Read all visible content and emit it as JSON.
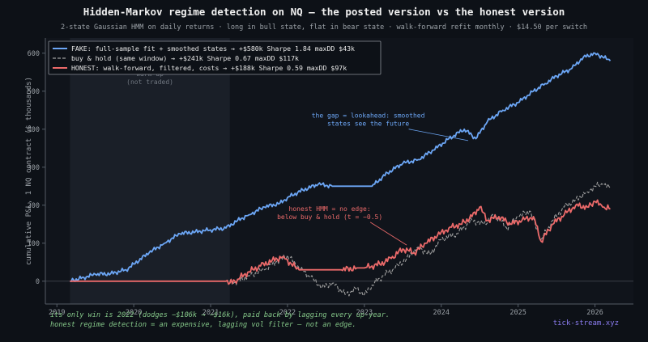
{
  "chart_data": {
    "type": "line",
    "title": "Hidden-Markov regime detection on NQ — the posted version vs the honest version",
    "subtitle": "2-state Gaussian HMM on daily returns · long in bull state, flat in bear state · walk-forward refit monthly · $14.50 per switch",
    "ylabel": "cumulative P&L, 1 NQ contract  ($ thousands)",
    "xlabel": "",
    "xlim": [
      2018.85,
      2026.5
    ],
    "ylim": [
      -60,
      640
    ],
    "x_ticks": [
      2019,
      2020,
      2021,
      2022,
      2023,
      2024,
      2025,
      2026
    ],
    "y_ticks": [
      0,
      100,
      200,
      300,
      400,
      500,
      600
    ],
    "grid": false,
    "legend_position": "top-left",
    "warmup": {
      "x_range": [
        2019.17,
        2021.25
      ],
      "label_line1": "warm-up",
      "label_line2": "(not traded)"
    },
    "series": [
      {
        "name": "FAKE: full-sample fit + smoothed states  →  +$580k    Sharpe 1.84    maxDD $43k",
        "color": "#6ca6f5",
        "style": "solid",
        "x": [
          2019.17,
          2019.35,
          2019.5,
          2019.7,
          2019.9,
          2020.0,
          2020.2,
          2020.4,
          2020.6,
          2020.8,
          2021.0,
          2021.2,
          2021.35,
          2021.5,
          2021.7,
          2021.9,
          2022.0,
          2022.2,
          2022.4,
          2022.6,
          2022.8,
          2022.9,
          2023.0,
          2023.1,
          2023.3,
          2023.5,
          2023.7,
          2023.9,
          2024.1,
          2024.3,
          2024.45,
          2024.6,
          2024.8,
          2025.0,
          2025.2,
          2025.35,
          2025.5,
          2025.7,
          2025.85,
          2026.0,
          2026.1,
          2026.2
        ],
        "values": [
          0,
          10,
          18,
          20,
          30,
          45,
          75,
          100,
          125,
          130,
          135,
          140,
          160,
          175,
          195,
          205,
          220,
          240,
          255,
          250,
          250,
          250,
          250,
          250,
          285,
          310,
          320,
          345,
          375,
          400,
          375,
          420,
          450,
          470,
          500,
          520,
          540,
          560,
          590,
          600,
          590,
          580
        ]
      },
      {
        "name": "buy & hold (same window)                  →  +$241k    Sharpe 0.67    maxDD $117k",
        "color": "#a0a0a0",
        "style": "dashed",
        "x": [
          2021.25,
          2021.3,
          2021.5,
          2021.7,
          2021.85,
          2022.0,
          2022.15,
          2022.3,
          2022.45,
          2022.6,
          2022.75,
          2022.9,
          2023.0,
          2023.1,
          2023.25,
          2023.4,
          2023.55,
          2023.7,
          2023.85,
          2024.0,
          2024.2,
          2024.4,
          2024.55,
          2024.7,
          2024.85,
          2025.0,
          2025.15,
          2025.3,
          2025.45,
          2025.6,
          2025.75,
          2025.9,
          2026.0,
          2026.1,
          2026.2
        ],
        "values": [
          0,
          -5,
          15,
          30,
          50,
          68,
          35,
          10,
          -15,
          -5,
          -35,
          -20,
          -35,
          -10,
          15,
          35,
          60,
          90,
          70,
          110,
          125,
          160,
          150,
          175,
          140,
          170,
          185,
          110,
          160,
          195,
          215,
          235,
          250,
          255,
          245
        ]
      },
      {
        "name": "HONEST: walk-forward, filtered, costs  →  +$188k    Sharpe 0.59    maxDD $97k",
        "color": "#ec6a6a",
        "style": "solid",
        "x": [
          2019.17,
          2021.2,
          2021.25,
          2021.35,
          2021.5,
          2021.65,
          2021.8,
          2021.95,
          2022.05,
          2022.15,
          2022.3,
          2022.5,
          2022.7,
          2022.9,
          2023.0,
          2023.1,
          2023.2,
          2023.35,
          2023.5,
          2023.65,
          2023.8,
          2023.95,
          2024.1,
          2024.25,
          2024.4,
          2024.5,
          2024.6,
          2024.75,
          2024.9,
          2025.05,
          2025.2,
          2025.3,
          2025.45,
          2025.6,
          2025.75,
          2025.9,
          2026.0,
          2026.1,
          2026.2
        ],
        "values": [
          0,
          0,
          -5,
          5,
          25,
          40,
          55,
          65,
          45,
          30,
          30,
          30,
          30,
          35,
          35,
          40,
          45,
          60,
          85,
          75,
          100,
          120,
          140,
          150,
          170,
          195,
          160,
          170,
          150,
          160,
          170,
          105,
          150,
          175,
          200,
          195,
          210,
          195,
          190
        ]
      }
    ],
    "annotations": [
      {
        "text_line1": "the gap = lookahead: smoothed",
        "text_line2": "states see the future",
        "color": "#6ca6f5",
        "point_x": 2024.35,
        "point_y": 370,
        "text_x": 2023.05,
        "text_y": 430
      },
      {
        "text_line1": "honest HMM = no edge:",
        "text_line2": "below buy & hold (t = −0.5)",
        "color": "#ec6a6a",
        "point_x": 2023.55,
        "point_y": 95,
        "text_x": 2022.55,
        "text_y": 185
      }
    ]
  },
  "footer": {
    "line1": "its only win is 2022 (dodges −$106k → −$16k), paid back by lagging every up-year.",
    "line2": "honest regime detection = an expensive, lagging vol filter — not an edge."
  },
  "brand": "tick-stream.xyz"
}
